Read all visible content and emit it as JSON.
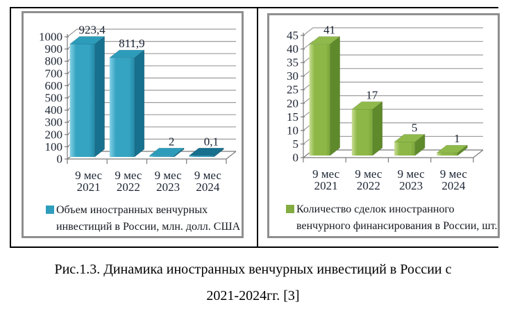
{
  "page": {
    "caption_line1": "Рис.1.3. Динамика иностранных венчурных инвестиций в России с",
    "caption_line2": "2021-2024гг. [3]"
  },
  "chart_data": [
    {
      "type": "bar",
      "variant": "3d-column",
      "title": "",
      "categories": [
        "9 мес\n2021",
        "9 мес\n2022",
        "9 мес\n2023",
        "9 мес\n2024"
      ],
      "values": [
        923.4,
        811.9,
        2,
        0.1
      ],
      "value_labels": [
        "923,4",
        "811,9",
        "2",
        "0,1"
      ],
      "y_ticks": [
        0,
        100,
        200,
        300,
        400,
        500,
        600,
        700,
        800,
        900,
        1000
      ],
      "ylim": [
        0,
        1000
      ],
      "grid": true,
      "legend_position": "bottom",
      "legend": [
        "Объем иностранных венчурных",
        "инвестиций в России, млн. долл. США"
      ],
      "colors": {
        "front": "#35a3c2",
        "front_light": "#86d2e6",
        "front_dark": "#2489a8",
        "side": "#16708e",
        "top": "#2d9cbb",
        "legend_swatch": "#2f9dbc",
        "grid": "#9c9c9c",
        "axis": "#7a7a7a"
      }
    },
    {
      "type": "bar",
      "variant": "3d-column",
      "title": "",
      "categories": [
        "9 мес\n2021",
        "9 мес\n2022",
        "9 мес\n2023",
        "9 мес\n2024"
      ],
      "values": [
        41,
        17,
        5,
        1
      ],
      "value_labels": [
        "41",
        "17",
        "5",
        "1"
      ],
      "y_ticks": [
        0,
        5,
        10,
        15,
        20,
        25,
        30,
        35,
        40,
        45
      ],
      "ylim": [
        0,
        45
      ],
      "grid": true,
      "legend_position": "bottom",
      "legend": [
        "Количество сделок иностранного",
        "венчурного финансирования в России, шт."
      ],
      "colors": {
        "front": "#8db747",
        "front_light": "#cade96",
        "front_dark": "#7aa63a",
        "side": "#5f8a2c",
        "top": "#8fba4b",
        "legend_swatch": "#83ac41",
        "grid": "#9c9c9c",
        "axis": "#7a7a7a"
      }
    }
  ]
}
